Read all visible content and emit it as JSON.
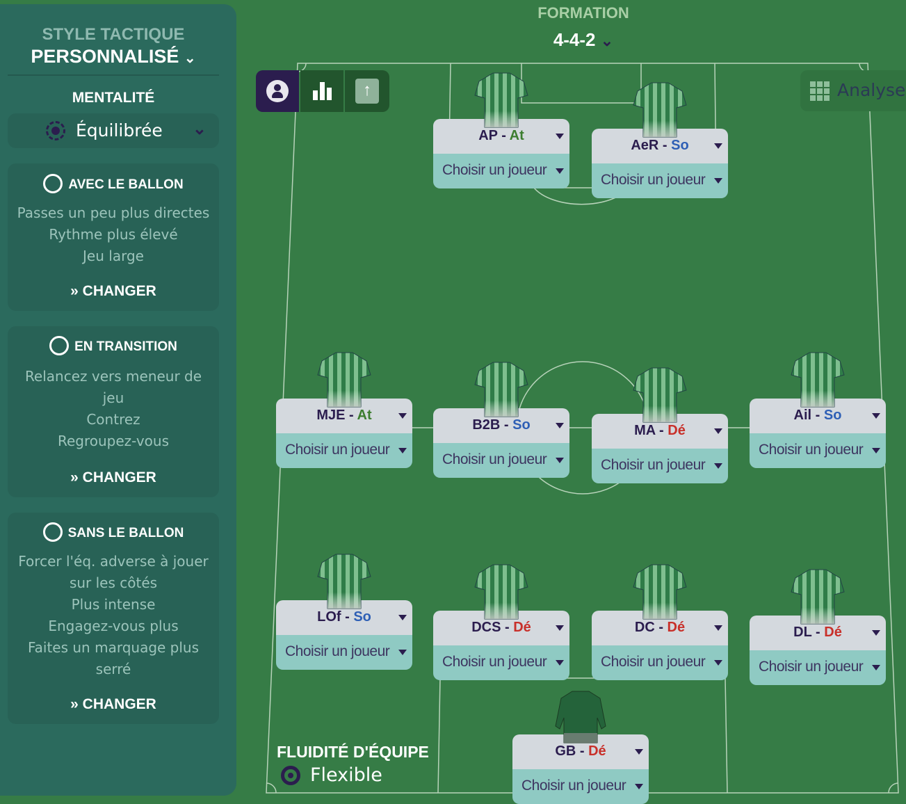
{
  "sidebar": {
    "style_label": "STYLE TACTIQUE",
    "style_value": "PERSONNALISÉ",
    "mentality_label": "MENTALITÉ",
    "mentality_value": "Équilibrée",
    "sections": [
      {
        "title": "AVEC LE BALLON",
        "icon": "football-icon",
        "lines": [
          "Passes un peu plus directes",
          "Rythme plus élevé",
          "Jeu large"
        ],
        "button": "CHANGER"
      },
      {
        "title": "EN TRANSITION",
        "icon": "transition-icon",
        "lines": [
          "Relancez vers meneur de",
          "jeu",
          "Contrez",
          "Regroupez-vous"
        ],
        "button": "CHANGER"
      },
      {
        "title": "SANS LE BALLON",
        "icon": "football-outline-icon",
        "lines": [
          "Forcer l'éq. adverse à jouer",
          "sur les côtés",
          "Plus intense",
          "Engagez-vous plus",
          "Faites un marquage plus",
          "serré"
        ],
        "button": "CHANGER"
      }
    ]
  },
  "formation": {
    "label": "FORMATION",
    "value": "4-4-2"
  },
  "toolbar": {
    "analyse": "Analyse",
    "colors": {
      "active": "#2b1d4e",
      "inactive": "#22552d"
    }
  },
  "fluidity": {
    "label": "FLUIDITÉ D'ÉQUIPE",
    "value": "Flexible"
  },
  "colors": {
    "pitch": "#367c46",
    "panel": "#2b6a5d",
    "attack": "#3c7d2f",
    "support": "#2e5fb5",
    "defend": "#c8302a"
  },
  "players": [
    {
      "role": "AP",
      "duty": "At",
      "duty_class": "At",
      "select": "Choisir un joueur"
    },
    {
      "role": "AeR",
      "duty": "So",
      "duty_class": "So",
      "select": "Choisir un joueur"
    },
    {
      "role": "MJE",
      "duty": "At",
      "duty_class": "At",
      "select": "Choisir un joueur"
    },
    {
      "role": "B2B",
      "duty": "So",
      "duty_class": "So",
      "select": "Choisir un joueur"
    },
    {
      "role": "MA",
      "duty": "Dé",
      "duty_class": "De",
      "select": "Choisir un joueur"
    },
    {
      "role": "Ail",
      "duty": "So",
      "duty_class": "So",
      "select": "Choisir un joueur"
    },
    {
      "role": "LOf",
      "duty": "So",
      "duty_class": "So",
      "select": "Choisir un joueur"
    },
    {
      "role": "DCS",
      "duty": "Dé",
      "duty_class": "De",
      "select": "Choisir un joueur"
    },
    {
      "role": "DC",
      "duty": "Dé",
      "duty_class": "De",
      "select": "Choisir un joueur"
    },
    {
      "role": "DL",
      "duty": "Dé",
      "duty_class": "De",
      "select": "Choisir un joueur"
    },
    {
      "role": "GB",
      "duty": "Dé",
      "duty_class": "De",
      "select": "Choisir un joueur",
      "goalkeeper": true
    }
  ]
}
